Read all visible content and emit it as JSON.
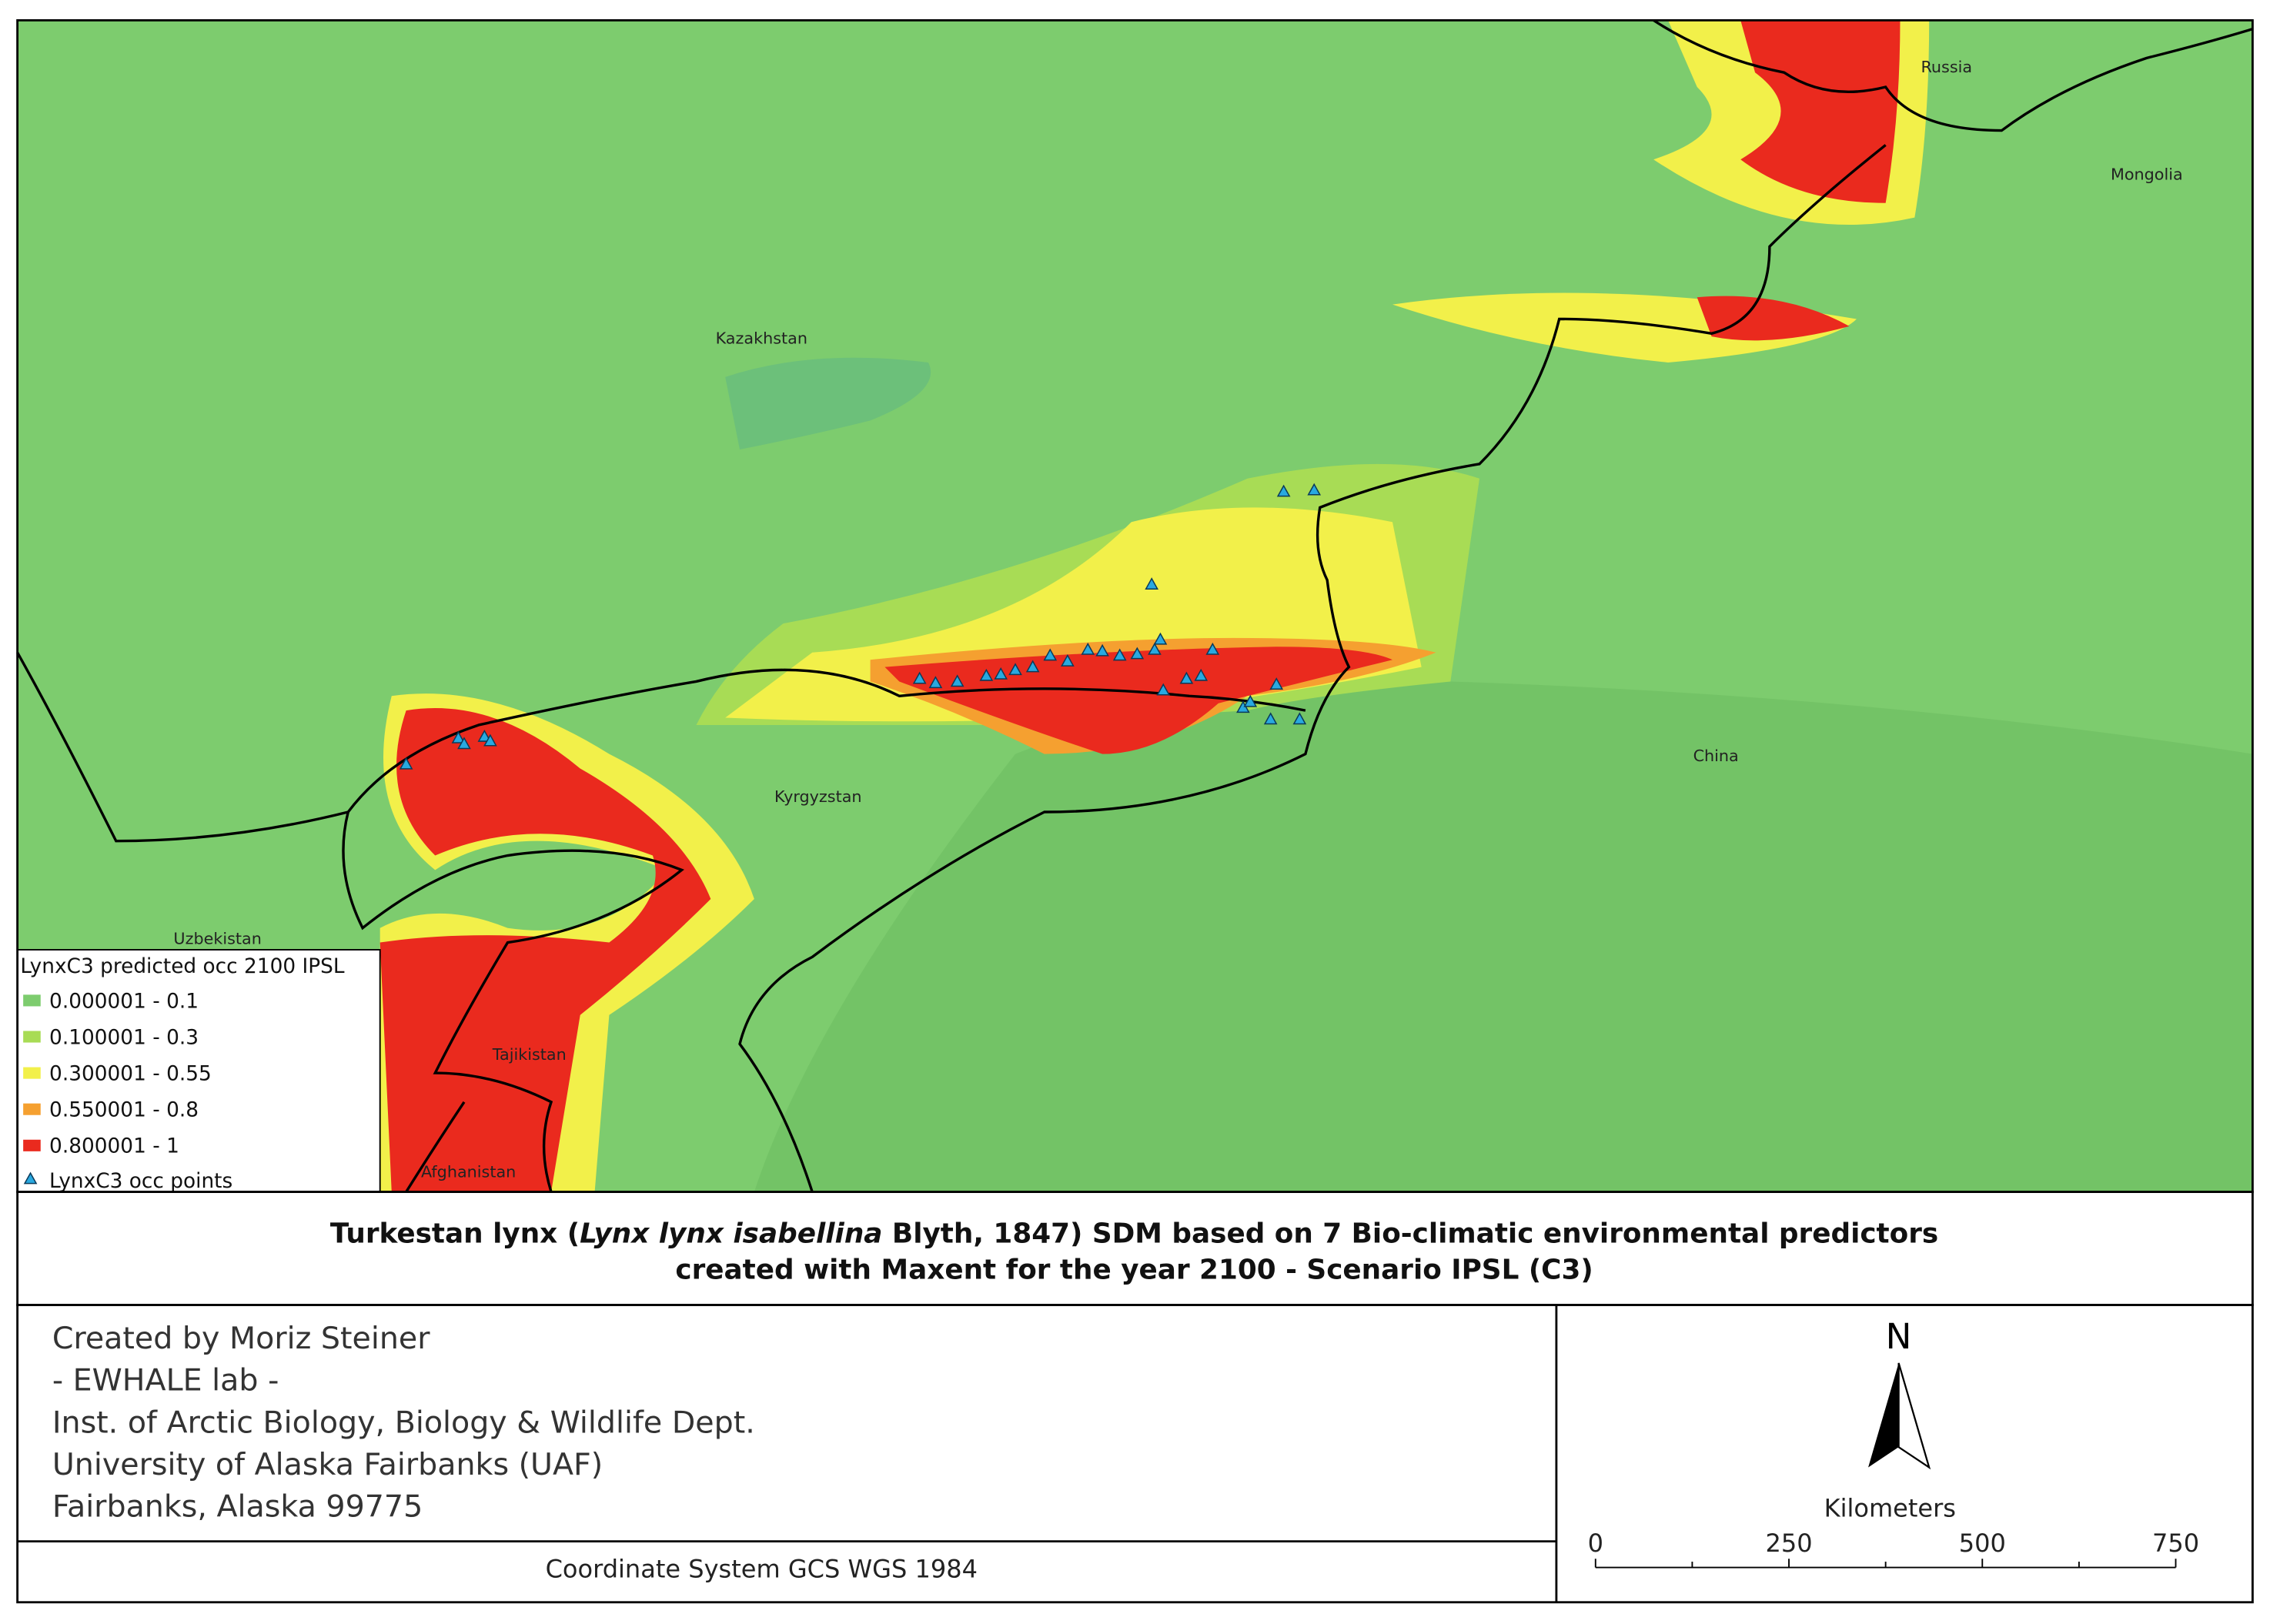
{
  "map": {
    "labels": [
      "Russia",
      "Mongolia",
      "Kazakhstan",
      "China",
      "Kyrgyzstan",
      "Uzbekistan",
      "Tajikistan",
      "Afghanistan"
    ]
  },
  "legend": {
    "title": "LynxC3 predicted occ 2100 IPSL",
    "items": [
      {
        "label": "0.000001 - 0.1",
        "color": "#7dcc6e"
      },
      {
        "label": "0.100001 - 0.3",
        "color": "#a8dc55"
      },
      {
        "label": "0.300001 - 0.55",
        "color": "#f2f04a"
      },
      {
        "label": "0.550001 - 0.8",
        "color": "#f5a030"
      },
      {
        "label": "0.800001 - 1",
        "color": "#ea2a1e"
      }
    ],
    "points": {
      "label": "LynxC3 occ points",
      "color": "#29a9e0"
    }
  },
  "title": {
    "line1": [
      "Turkestan lynx (",
      "Lynx lynx isabellina",
      " Blyth, 1847) SDM based on 7 Bio-climatic environmental predictors"
    ],
    "line2": "created with Maxent for the year 2100 - Scenario IPSL (C3)"
  },
  "credits": [
    "Created by Moriz Steiner",
    "- EWHALE lab -",
    "Inst. of Arctic Biology,  Biology & Wildlife Dept.",
    "University of Alaska Fairbanks (UAF)",
    "Fairbanks, Alaska 99775"
  ],
  "coordinate_system": "Coordinate System GCS WGS 1984",
  "north": "N",
  "scale": {
    "unit": "Kilometers",
    "ticks": [
      0,
      250,
      500,
      750
    ]
  }
}
